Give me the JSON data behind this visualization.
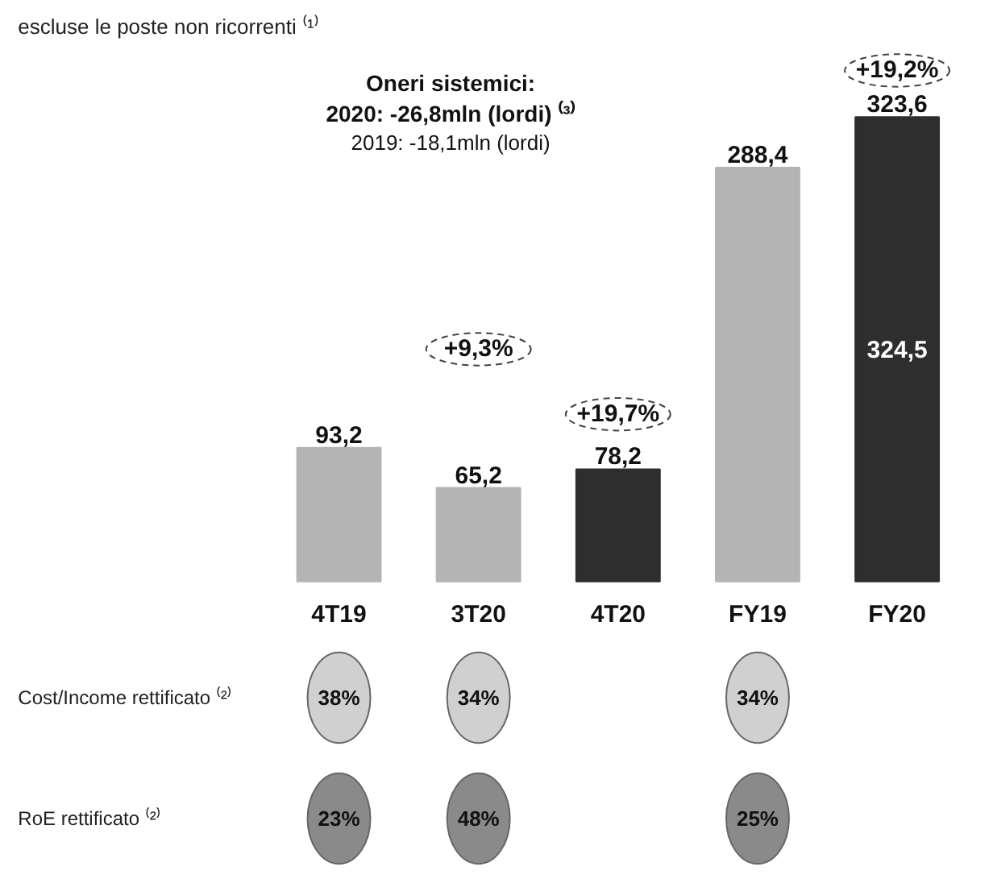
{
  "chart_data": [
    {
      "type": "bar",
      "categories": [
        "4T19",
        "3T20",
        "4T20",
        "FY19",
        "FY20"
      ],
      "values": [
        93.2,
        65.2,
        78.2,
        288.4,
        323.6
      ],
      "colors": [
        "#b4b4b4",
        "#b4b4b4",
        "#2e2e2e",
        "#b4b4b4",
        "#2e2e2e"
      ],
      "value_labels": [
        "93,2",
        "65,2",
        "78,2",
        "288,4",
        "323,6"
      ],
      "annotations": [
        "escluse le poste non ricorrenti ⁽¹⁾",
        "Oneri sistemici:",
        "2020: -26,8mln (lordi) ⁽³⁾",
        "2019: -18,1mln (lordi)",
        "+9,3%",
        "+19,7%",
        "+19,2%",
        "324,5"
      ]
    },
    {
      "type": "other",
      "categories": [
        null,
        null,
        null,
        null,
        null
      ],
      "y_categories": [
        "Cost/Income rettificato ⁽²⁾",
        "RoE rettificato ⁽²⁾"
      ],
      "cell_labels": [
        [
          "38%",
          "34%",
          null,
          "34%",
          null
        ],
        [
          "23%",
          "48%",
          null,
          "25%",
          null
        ]
      ],
      "colors": [
        "#d0d0d0",
        "#8a8a8a"
      ]
    }
  ]
}
